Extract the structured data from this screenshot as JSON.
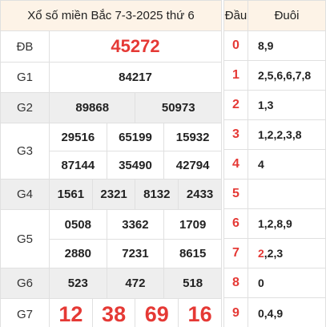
{
  "title": "Xổ số miền Bắc 7-3-2025 thứ 6",
  "prizes": {
    "db": {
      "label": "ĐB",
      "values": [
        "45272"
      ]
    },
    "g1": {
      "label": "G1",
      "values": [
        "84217"
      ]
    },
    "g2": {
      "label": "G2",
      "values": [
        "89868",
        "50973"
      ]
    },
    "g3": {
      "label": "G3",
      "values": [
        "29516",
        "65199",
        "15932",
        "87144",
        "35490",
        "42794"
      ]
    },
    "g4": {
      "label": "G4",
      "values": [
        "1561",
        "2321",
        "8132",
        "2433"
      ]
    },
    "g5": {
      "label": "G5",
      "values": [
        "0508",
        "3362",
        "1709",
        "2880",
        "7231",
        "8615"
      ]
    },
    "g6": {
      "label": "G6",
      "values": [
        "523",
        "472",
        "518"
      ]
    },
    "g7": {
      "label": "G7",
      "values": [
        "12",
        "38",
        "69",
        "16"
      ]
    }
  },
  "head_tail": {
    "head_title": "Đầu",
    "tail_title": "Đuôi",
    "rows": [
      {
        "head": "0",
        "tail": "8,9"
      },
      {
        "head": "1",
        "tail": "2,5,6,6,7,8"
      },
      {
        "head": "2",
        "tail_highlight": "",
        "tail": "1,3"
      },
      {
        "head": "3",
        "tail": "1,2,2,3,8"
      },
      {
        "head": "4",
        "tail": "4"
      },
      {
        "head": "5",
        "tail": ""
      },
      {
        "head": "6",
        "tail": "1,2,8,9"
      },
      {
        "head": "7",
        "tail_highlight": "2",
        "tail_rest": ",2,3"
      },
      {
        "head": "8",
        "tail": "0"
      },
      {
        "head": "9",
        "tail": "0,4,9"
      }
    ]
  },
  "colors": {
    "accent": "#e53935",
    "title_bg": "#fdf3e7",
    "shade_bg": "#eeeeee",
    "border": "#e0e0e0"
  }
}
